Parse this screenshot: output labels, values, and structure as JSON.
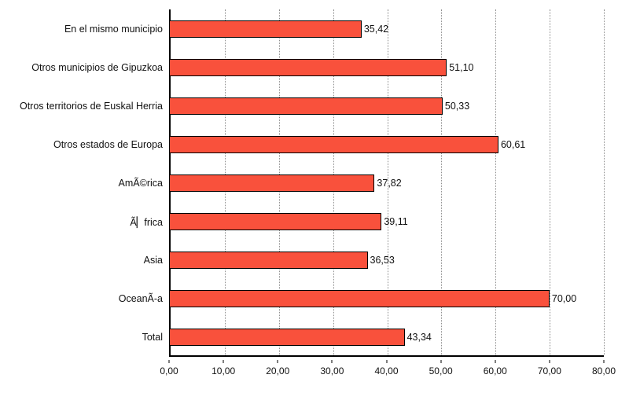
{
  "chart_data": {
    "type": "bar",
    "orientation": "horizontal",
    "title": "",
    "xlabel": "",
    "ylabel": "",
    "categories": [
      "En el mismo municipio",
      "Otros municipios de Gipuzkoa",
      "Otros territorios de Euskal Herria",
      "Otros estados de Europa",
      "AmÃ©rica",
      "Ã▏frica",
      "Asia",
      "OceanÃ-a",
      "Total"
    ],
    "values": [
      35.42,
      51.1,
      50.33,
      60.61,
      37.82,
      39.11,
      36.53,
      70.0,
      43.34
    ],
    "value_labels": [
      "35,42",
      "51,10",
      "50,33",
      "60,61",
      "37,82",
      "39,11",
      "36,53",
      "70,00",
      "43,34"
    ],
    "xlim": [
      0,
      80
    ],
    "x_ticks": [
      "0,00",
      "10,00",
      "20,00",
      "30,00",
      "40,00",
      "50,00",
      "60,00",
      "70,00",
      "80,00"
    ],
    "grid": "dotted-vertical",
    "legend": "none",
    "bar_color": "#f9513c",
    "bar_border_color": "#000000",
    "axis_color": "#000000",
    "gridline_color": "#8f8f8f",
    "background_color": "#ffffff"
  }
}
